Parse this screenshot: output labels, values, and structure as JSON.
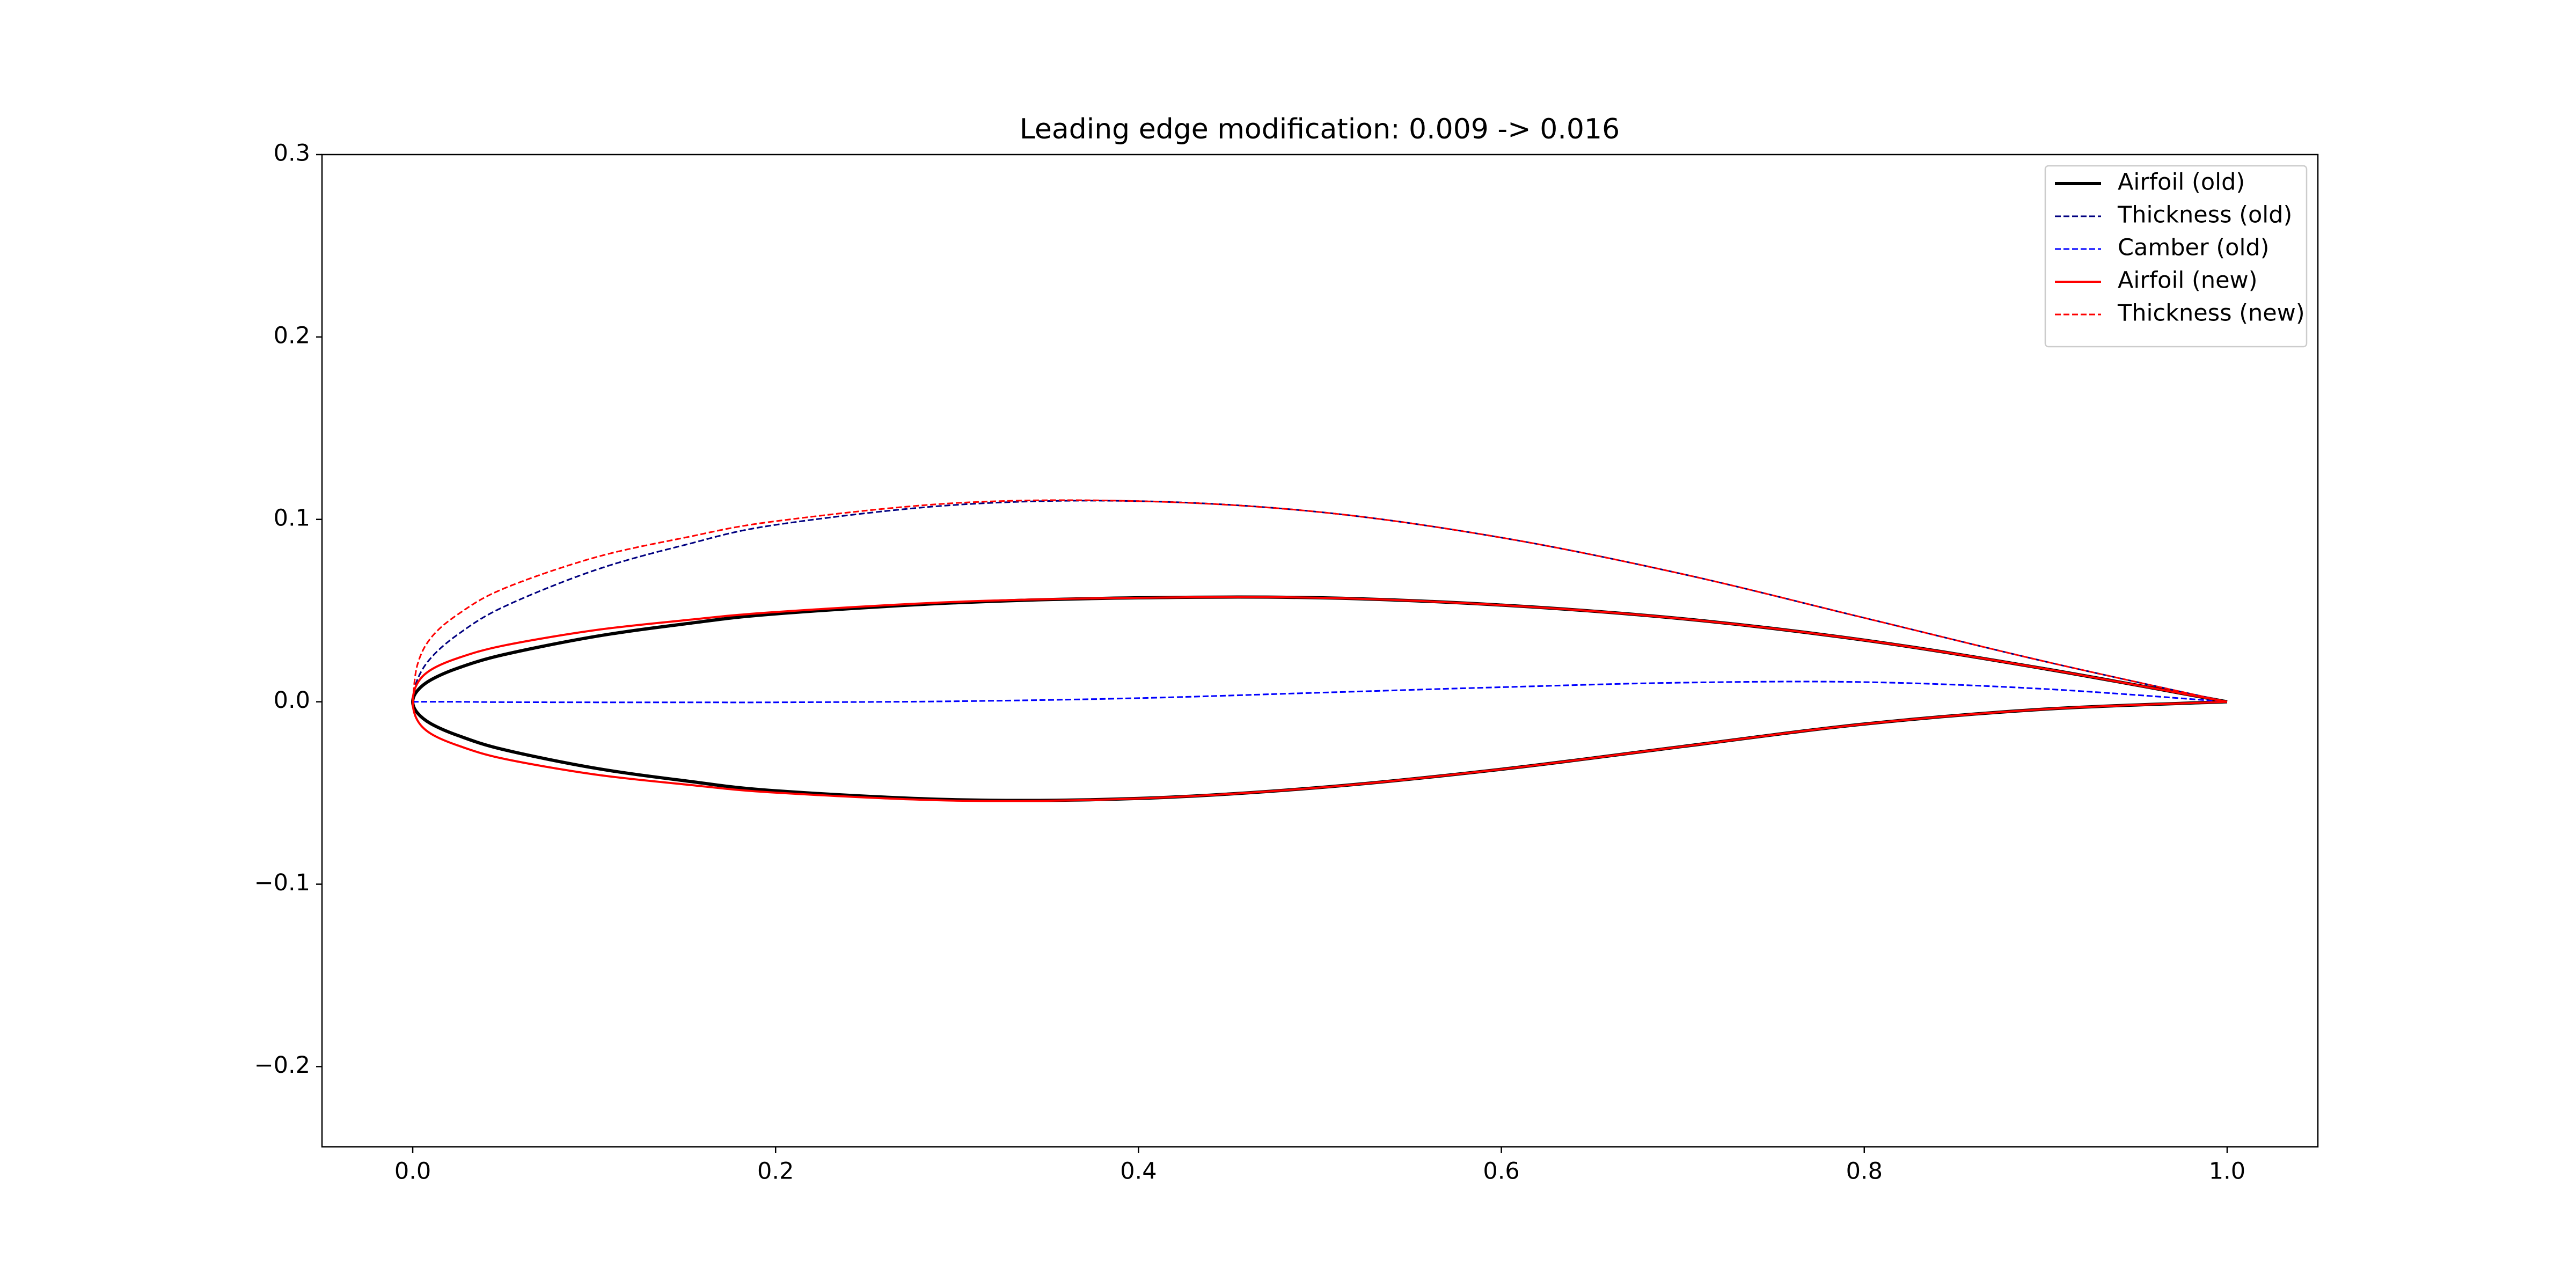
{
  "chart_data": {
    "type": "line",
    "title": "Leading edge modification: 0.009 -> 0.016",
    "xlim": [
      -0.05,
      1.05
    ],
    "ylim": [
      -0.244,
      0.3
    ],
    "xticks": [
      {
        "value": 0,
        "label": "0.0"
      },
      0.2,
      0.4,
      0.6,
      0.8,
      {
        "value": 1,
        "label": "1.0"
      }
    ],
    "yticks": [
      {
        "value": -0.2,
        "label": "−0.2"
      },
      {
        "value": -0.1,
        "label": "−0.1"
      },
      {
        "value": 0,
        "label": "0.0"
      },
      0.1,
      0.2,
      0.3
    ],
    "grid": false,
    "legend": "upper right",
    "series": [
      {
        "name": "Airfoil (old)",
        "color": "#000000",
        "linestyle": "solid",
        "linewidth": 2,
        "x": [
          1.0,
          0.9,
          0.8,
          0.7,
          0.6,
          0.5,
          0.4,
          0.3,
          0.2,
          0.15,
          0.1,
          0.05,
          0.025,
          0.01,
          0.0025,
          0,
          0.0025,
          0.01,
          0.025,
          0.05,
          0.1,
          0.15,
          0.2,
          0.3,
          0.4,
          0.5,
          0.6,
          0.7,
          0.8,
          0.9,
          1.0
        ],
        "values": [
          0,
          0.018,
          0.0338,
          0.0455,
          0.053,
          0.057,
          0.057,
          0.0543,
          0.0482,
          0.0427,
          0.0357,
          0.0258,
          0.0185,
          0.012,
          0.006,
          0,
          -0.006,
          -0.012,
          -0.0185,
          -0.0262,
          -0.0363,
          -0.0433,
          -0.0488,
          -0.0537,
          -0.053,
          -0.047,
          -0.037,
          -0.0245,
          -0.0122,
          -0.004,
          0
        ]
      },
      {
        "name": "Thickness (old)",
        "color": "#000080",
        "linestyle": "dashed",
        "linewidth": 1,
        "x": [
          0,
          0.0025,
          0.01,
          0.025,
          0.05,
          0.1,
          0.15,
          0.2,
          0.3,
          0.4,
          0.5,
          0.6,
          0.7,
          0.8,
          0.9,
          1.0
        ],
        "values": [
          0,
          0.012,
          0.024,
          0.037,
          0.052,
          0.072,
          0.086,
          0.097,
          0.108,
          0.11,
          0.104,
          0.09,
          0.07,
          0.046,
          0.022,
          0
        ]
      },
      {
        "name": "Camber (old)",
        "color": "#0000ff",
        "linestyle": "dashed",
        "linewidth": 1,
        "x": [
          0,
          0.0025,
          0.01,
          0.025,
          0.05,
          0.1,
          0.15,
          0.2,
          0.3,
          0.4,
          0.5,
          0.6,
          0.7,
          0.8,
          0.9,
          1.0
        ],
        "values": [
          0,
          0,
          0,
          0,
          -0.0002,
          -0.0003,
          -0.0003,
          -0.0003,
          0.0003,
          0.002,
          0.005,
          0.008,
          0.0105,
          0.0108,
          0.007,
          0
        ]
      },
      {
        "name": "Airfoil (new)",
        "color": "#ff0000",
        "linestyle": "solid",
        "linewidth": 1.3,
        "x": [
          1.0,
          0.9,
          0.8,
          0.7,
          0.6,
          0.5,
          0.4,
          0.3,
          0.2,
          0.15,
          0.1,
          0.05,
          0.025,
          0.01,
          0.0025,
          0,
          0.0025,
          0.01,
          0.025,
          0.05,
          0.1,
          0.15,
          0.2,
          0.3,
          0.4,
          0.5,
          0.6,
          0.7,
          0.8,
          0.9,
          1.0
        ],
        "values": [
          0,
          0.018,
          0.0338,
          0.0455,
          0.053,
          0.057,
          0.057,
          0.0548,
          0.0492,
          0.0447,
          0.0392,
          0.0308,
          0.024,
          0.0175,
          0.01,
          0,
          -0.01,
          -0.0175,
          -0.024,
          -0.0312,
          -0.0398,
          -0.0453,
          -0.0498,
          -0.0542,
          -0.053,
          -0.047,
          -0.037,
          -0.0245,
          -0.0122,
          -0.004,
          0
        ]
      },
      {
        "name": "Thickness (new)",
        "color": "#ff0000",
        "linestyle": "dashed",
        "linewidth": 1,
        "x": [
          0,
          0.0025,
          0.01,
          0.025,
          0.05,
          0.1,
          0.15,
          0.2,
          0.3,
          0.4,
          0.5,
          0.6,
          0.7,
          0.8,
          0.9,
          1.0
        ],
        "values": [
          0,
          0.02,
          0.035,
          0.048,
          0.062,
          0.079,
          0.09,
          0.099,
          0.109,
          0.11,
          0.104,
          0.09,
          0.07,
          0.046,
          0.022,
          0
        ]
      }
    ]
  }
}
